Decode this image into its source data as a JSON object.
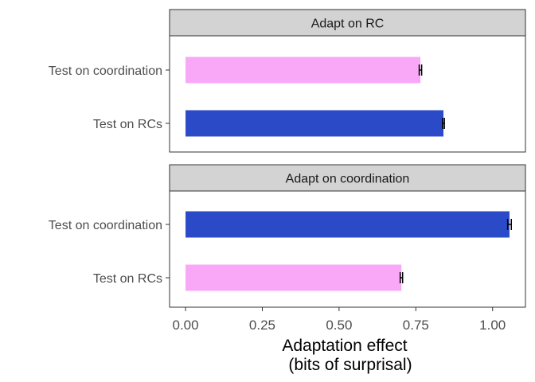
{
  "chart_data": {
    "type": "bar",
    "orientation": "horizontal",
    "facets": [
      {
        "strip_label": "Adapt on RC",
        "bars": [
          {
            "category": "Test on coordination",
            "value": 0.765,
            "error": 0.004,
            "color": "#F9A8F8"
          },
          {
            "category": "Test on RCs",
            "value": 0.84,
            "error": 0.003,
            "color": "#2B4AC8"
          }
        ]
      },
      {
        "strip_label": "Adapt on coordination",
        "bars": [
          {
            "category": "Test on coordination",
            "value": 1.055,
            "error": 0.006,
            "color": "#2B4AC8"
          },
          {
            "category": "Test on RCs",
            "value": 0.703,
            "error": 0.004,
            "color": "#F9A8F8"
          }
        ]
      }
    ],
    "x_ticks": [
      "0.00",
      "0.25",
      "0.50",
      "0.75",
      "1.00"
    ],
    "x_tick_values": [
      0,
      0.25,
      0.5,
      0.75,
      1.0
    ],
    "xlim": [
      -0.052,
      1.107
    ],
    "xlabel_line1": "Adaptation effect",
    "xlabel_line2": "(bits of surprisal)",
    "grid": false,
    "strip_fill": "#D3D3D3"
  }
}
